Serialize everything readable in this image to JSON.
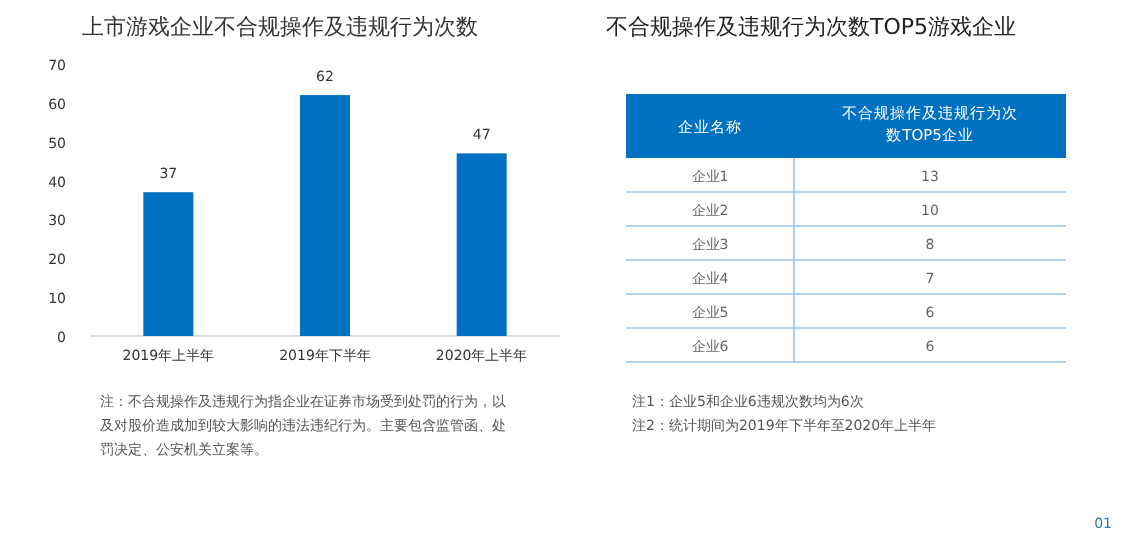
{
  "chart_data": [
    {
      "type": "bar",
      "title": "上市游戏企业不合规操作及违规行为次数",
      "categories": [
        "2019年上半年",
        "2019年下半年",
        "2020年上半年"
      ],
      "values": [
        37,
        62,
        47
      ],
      "color": "#0070c0",
      "ylim": [
        0,
        70
      ],
      "yticks": [
        0,
        10,
        20,
        30,
        40,
        50,
        60,
        70
      ],
      "data_labels": true,
      "grid": false,
      "annotations": [
        "注：不合规操作及违规行为指企业在证券市场受到处罚的行为，以及对股价造成加到较大影响的违法违纪行为。主要包含监管函、处罚决定、公安机关立案等。"
      ]
    },
    {
      "type": "other",
      "title": "不合规操作及违规行为次数TOP5游戏企业",
      "xlabel": "企业名称",
      "ylabel": "不合规操作及违规行为次数TOP5企业",
      "categories": [
        "企业1",
        "企业2",
        "企业3",
        "企业4",
        "企业5",
        "企业6"
      ],
      "values": [
        13,
        10,
        8,
        7,
        6,
        6
      ],
      "color": "#0070c0",
      "data_labels": true,
      "annotations": [
        "注1：企业5和企业6违规次数均为6次",
        "注2：统计期间为2019年下半年至2020年上半年",
        "01"
      ]
    }
  ]
}
